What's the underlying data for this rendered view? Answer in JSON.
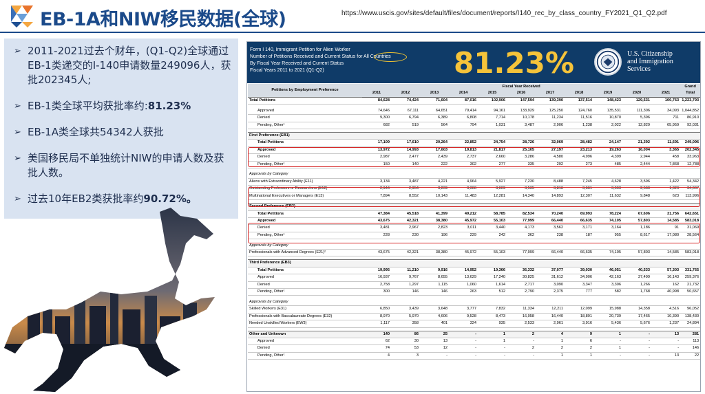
{
  "header": {
    "title": "EB-1A和NIW移民数据(全球)",
    "source_url": "https://www.uscis.gov/sites/default/files/document/reports/I140_rec_by_class_country_FY2021_Q1_Q2.pdf"
  },
  "bullets": [
    {
      "text": "2011-2021过去个财年，(Q1-Q2)全球通过EB-1类递交的I-140申请数量249096人，获批202345人;"
    },
    {
      "text": "EB-1类全球平均获批率约:",
      "strong": "81.23%"
    },
    {
      "text": "EB-1A类全球共54342人获批"
    },
    {
      "text": "美国移民局不单独统计NIW的申请人数及获批人数。"
    },
    {
      "text": "过去10年EB2类获批率约",
      "strong": "90.72%。"
    }
  ],
  "document": {
    "head_lines": [
      "Form I 140, Immigrant Petition for Alien Worker",
      "Number of Petitions Received and Current Status for All Countries",
      "By Fiscal Year Received and Current Status",
      "Fiscal Years 2011 to 2021 (Q1-Q2)"
    ],
    "rate": "81.23%",
    "agency": [
      "U.S. Citizenship",
      "and Immigration",
      "Services"
    ],
    "table": {
      "first_header": "Petitions by Employment Preference",
      "fy_header": "Fiscal Year Received",
      "grand_header": "Grand",
      "grand_sub": "Total",
      "years": [
        "2011",
        "2012",
        "2013",
        "2014",
        "2015",
        "2016",
        "2017",
        "2018",
        "2019",
        "2020",
        "2021"
      ],
      "rows": [
        {
          "label": "Total Petitions",
          "cls": "total",
          "v": [
            "84,628",
            "74,424",
            "71,604",
            "87,016",
            "102,906",
            "147,594",
            "139,390",
            "137,514",
            "148,423",
            "129,531",
            "100,763",
            "1,223,793"
          ]
        },
        {
          "cls": "gap"
        },
        {
          "label": "Approved",
          "cls": "ind",
          "v": [
            "74,646",
            "67,111",
            "64,651",
            "79,414",
            "94,161",
            "133,929",
            "125,250",
            "124,760",
            "135,531",
            "111,306",
            "34,093",
            "1,044,852"
          ]
        },
        {
          "label": "Denied",
          "cls": "ind",
          "v": [
            "9,300",
            "6,794",
            "6,389",
            "6,808",
            "7,714",
            "10,178",
            "11,234",
            "11,516",
            "10,870",
            "5,396",
            "711",
            "86,910"
          ]
        },
        {
          "label": "Pending, Other¹",
          "cls": "ind",
          "v": [
            "682",
            "519",
            "564",
            "794",
            "1,031",
            "3,487",
            "2,906",
            "1,238",
            "2,022",
            "12,829",
            "65,959",
            "92,031"
          ]
        },
        {
          "cls": "gap"
        },
        {
          "label": "First Preference (EB1)",
          "cls": "section",
          "v": [
            "",
            "",
            "",
            "",
            "",
            "",
            "",
            "",
            "",
            "",
            "",
            ""
          ]
        },
        {
          "label": "Total Petitions",
          "cls": "ind bold",
          "v": [
            "17,109",
            "17,610",
            "20,264",
            "22,852",
            "24,754",
            "28,726",
            "32,069",
            "28,482",
            "24,147",
            "21,392",
            "11,691",
            "249,096"
          ]
        },
        {
          "label": "Approved",
          "cls": "ind bold",
          "v": [
            "13,972",
            "14,993",
            "17,603",
            "19,813",
            "21,817",
            "25,105",
            "27,197",
            "23,213",
            "19,263",
            "16,004",
            "3,365",
            "202,345"
          ]
        },
        {
          "label": "Denied",
          "cls": "ind",
          "v": [
            "2,987",
            "2,477",
            "2,439",
            "2,737",
            "2,660",
            "3,286",
            "4,580",
            "4,996",
            "4,399",
            "2,944",
            "458",
            "33,963"
          ]
        },
        {
          "label": "Pending, Other¹",
          "cls": "ind",
          "v": [
            "150",
            "140",
            "222",
            "302",
            "277",
            "335",
            "292",
            "273",
            "485",
            "2,444",
            "7,868",
            "12,788"
          ]
        },
        {
          "cls": "gap"
        },
        {
          "label": "Approvals by Category",
          "cls": "italic",
          "v": [
            "",
            "",
            "",
            "",
            "",
            "",
            "",
            "",
            "",
            "",
            "",
            ""
          ]
        },
        {
          "label": "Aliens with Extraordinary Ability (E11)",
          "cls": "",
          "v": [
            "3,134",
            "3,487",
            "4,221",
            "4,964",
            "5,927",
            "7,230",
            "8,488",
            "7,245",
            "4,628",
            "3,596",
            "1,422",
            "54,342"
          ]
        },
        {
          "label": "Outstanding Professors or Researchers (E12)",
          "cls": "",
          "v": [
            "2,944",
            "2,954",
            "3,239",
            "3,366",
            "3,609",
            "3,535",
            "3,816",
            "3,661",
            "3,003",
            "2,560",
            "1,320",
            "34,007"
          ]
        },
        {
          "label": "Multinational Executives or Managers (E13)",
          "cls": "",
          "v": [
            "7,894",
            "8,552",
            "10,143",
            "11,483",
            "12,281",
            "14,340",
            "14,893",
            "12,307",
            "11,632",
            "9,848",
            "623",
            "113,996"
          ]
        },
        {
          "cls": "gap"
        },
        {
          "label": "Second Preference (EB2)",
          "cls": "section",
          "v": [
            "",
            "",
            "",
            "",
            "",
            "",
            "",
            "",
            "",
            "",
            "",
            ""
          ]
        },
        {
          "label": "Total Petitions",
          "cls": "ind bold",
          "v": [
            "47,384",
            "45,518",
            "41,399",
            "49,212",
            "58,785",
            "82,534",
            "70,240",
            "69,993",
            "78,224",
            "67,606",
            "31,756",
            "642,651"
          ]
        },
        {
          "label": "Approved",
          "cls": "ind bold",
          "v": [
            "43,675",
            "42,321",
            "38,380",
            "45,972",
            "55,103",
            "77,999",
            "66,440",
            "66,635",
            "74,105",
            "57,803",
            "14,585",
            "583,018"
          ]
        },
        {
          "label": "Denied",
          "cls": "ind",
          "v": [
            "3,481",
            "2,967",
            "2,823",
            "3,011",
            "3,440",
            "4,173",
            "3,562",
            "3,171",
            "3,164",
            "1,186",
            "91",
            "31,069"
          ]
        },
        {
          "label": "Pending, Other¹",
          "cls": "ind",
          "v": [
            "228",
            "230",
            "196",
            "229",
            "242",
            "362",
            "238",
            "187",
            "955",
            "8,617",
            "17,080",
            "28,564"
          ]
        },
        {
          "cls": "gap"
        },
        {
          "label": "Approvals by Category",
          "cls": "italic",
          "v": [
            "",
            "",
            "",
            "",
            "",
            "",
            "",
            "",
            "",
            "",
            "",
            ""
          ]
        },
        {
          "label": "Professionals with Advanced Degrees (E21)²",
          "cls": "",
          "v": [
            "43,675",
            "42,321",
            "38,380",
            "45,972",
            "55,103",
            "77,999",
            "66,440",
            "66,635",
            "74,105",
            "57,803",
            "14,585",
            "583,018"
          ]
        },
        {
          "cls": "gap"
        },
        {
          "label": "Third Preference (EB3)",
          "cls": "section",
          "v": [
            "",
            "",
            "",
            "",
            "",
            "",
            "",
            "",
            "",
            "",
            "",
            ""
          ]
        },
        {
          "label": "Total Petitions",
          "cls": "ind bold",
          "v": [
            "19,995",
            "11,210",
            "9,916",
            "14,952",
            "19,366",
            "36,332",
            "37,077",
            "39,030",
            "46,051",
            "40,533",
            "57,303",
            "331,765"
          ]
        },
        {
          "label": "Approved",
          "cls": "ind",
          "v": [
            "16,937",
            "9,767",
            "8,655",
            "13,629",
            "17,240",
            "30,825",
            "31,612",
            "34,906",
            "42,163",
            "37,499",
            "16,143",
            "259,376"
          ]
        },
        {
          "label": "Denied",
          "cls": "ind",
          "v": [
            "2,758",
            "1,297",
            "1,115",
            "1,060",
            "1,614",
            "2,717",
            "3,090",
            "3,347",
            "3,306",
            "1,266",
            "162",
            "21,732"
          ]
        },
        {
          "label": "Pending, Other¹",
          "cls": "ind",
          "v": [
            "300",
            "146",
            "146",
            "263",
            "512",
            "2,790",
            "2,375",
            "777",
            "582",
            "1,768",
            "40,998",
            "50,657"
          ]
        },
        {
          "cls": "gap"
        },
        {
          "label": "Approvals by Category",
          "cls": "italic",
          "v": [
            "",
            "",
            "",
            "",
            "",
            "",
            "",
            "",
            "",
            "",
            "",
            ""
          ]
        },
        {
          "label": "Skilled Workers (E31)",
          "cls": "",
          "v": [
            "6,850",
            "3,439",
            "3,648",
            "3,777",
            "7,832",
            "11,334",
            "12,211",
            "12,099",
            "15,988",
            "14,358",
            "4,516",
            "96,052"
          ]
        },
        {
          "label": "Professionals with Baccalaureate Degrees (E32)",
          "cls": "",
          "v": [
            "8,970",
            "5,970",
            "4,606",
            "9,528",
            "8,473",
            "16,958",
            "16,440",
            "18,891",
            "20,739",
            "17,465",
            "10,390",
            "138,430"
          ]
        },
        {
          "label": "Needed Unskilled Workers (EW3)",
          "cls": "",
          "v": [
            "1,117",
            "358",
            "401",
            "324",
            "935",
            "2,533",
            "2,961",
            "3,916",
            "5,436",
            "5,676",
            "1,237",
            "24,894"
          ]
        },
        {
          "cls": "gap"
        },
        {
          "label": "Other and Unknown",
          "cls": "section",
          "v": [
            "140",
            "86",
            "25",
            "-",
            "1",
            "2",
            "4",
            "9",
            "1",
            "-",
            "13",
            "281"
          ]
        },
        {
          "label": "Approved",
          "cls": "ind",
          "v": [
            "62",
            "30",
            "13",
            "-",
            "1",
            "-",
            "1",
            "6",
            "-",
            "-",
            "-",
            "113"
          ]
        },
        {
          "label": "Denied",
          "cls": "ind",
          "v": [
            "74",
            "53",
            "12",
            "-",
            "-",
            "2",
            "2",
            "2",
            "1",
            "-",
            "-",
            "146"
          ]
        },
        {
          "label": "Pending, Other¹",
          "cls": "ind",
          "v": [
            "4",
            "3",
            "-",
            "-",
            "-",
            "-",
            "1",
            "1",
            "-",
            "-",
            "13",
            "22"
          ]
        }
      ]
    }
  }
}
